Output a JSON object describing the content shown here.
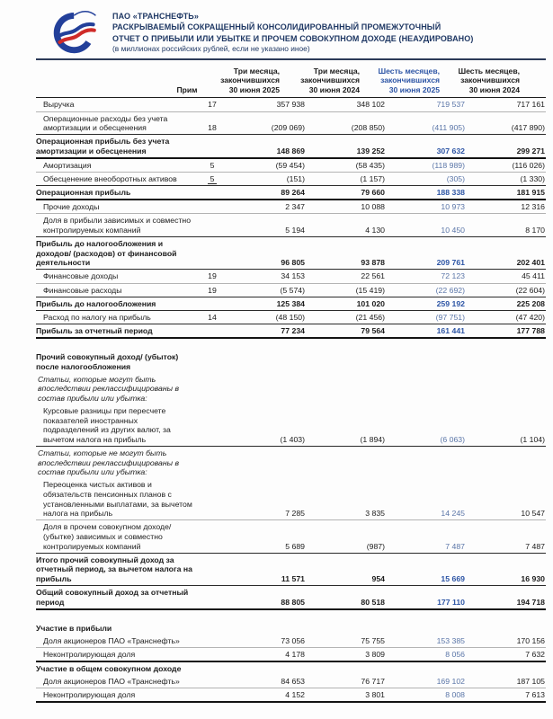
{
  "header": {
    "company": "ПАО «ТРАНСНЕФТЬ»",
    "title_line1": "РАСКРЫВАЕМЫЙ СОКРАЩЕННЫЙ КОНСОЛИДИРОВАННЫЙ ПРОМЕЖУТОЧНЫЙ",
    "title_line2": "ОТЧЕТ О ПРИБЫЛИ ИЛИ УБЫТКЕ И ПРОЧЕМ СОВОКУПНОМ ДОХОДЕ (НЕАУДИРОВАНО)",
    "units_note": "(в миллионах российских рублей, если не указано иное)",
    "logo": "transneft-emblem"
  },
  "colors": {
    "accent_blue": "#2d55a5",
    "value_blue": "#5b76a8",
    "header_navy": "#1f3864",
    "logo_blue": "#23409a",
    "logo_red": "#cf2b28"
  },
  "table": {
    "note_header": "Прим",
    "columns": [
      {
        "lines": [
          "Три месяца,",
          "закончившихся",
          "30 июня 2025"
        ],
        "highlight": false
      },
      {
        "lines": [
          "Три месяца,",
          "закончившихся",
          "30 июня 2024"
        ],
        "highlight": false
      },
      {
        "lines": [
          "Шесть месяцев,",
          "закончившихся",
          "30 июня 2025"
        ],
        "highlight": true
      },
      {
        "lines": [
          "Шесть месяцев,",
          "закончившихся",
          "30 июня 2024"
        ],
        "highlight": false
      }
    ],
    "rows": [
      {
        "label": "Выручка",
        "note": "17",
        "values": [
          "357 938",
          "348 102",
          "719 537",
          "717 161"
        ],
        "style": "data",
        "border": "thin"
      },
      {
        "label": "Операционные расходы без учета амортизации и обесценения",
        "note": "18",
        "values": [
          "(209 069)",
          "(208 850)",
          "(411 905)",
          "(417 890)"
        ],
        "style": "data",
        "border": "dark"
      },
      {
        "label": "Операционная прибыль без учета амортизации и обесценения",
        "values": [
          "148 869",
          "139 252",
          "307 632",
          "299 271"
        ],
        "style": "total",
        "border": "thick"
      },
      {
        "label": "Амортизация",
        "note": "5",
        "values": [
          "(59 454)",
          "(58 435)",
          "(118 989)",
          "(116 026)"
        ],
        "style": "data",
        "border": "thin"
      },
      {
        "label": "Обесценение внеоборотных активов",
        "note": "5",
        "note_underline": true,
        "values": [
          "(151)",
          "(1 157)",
          "(305)",
          "(1 330)"
        ],
        "style": "data",
        "border": "dark"
      },
      {
        "label": "Операционная прибыль",
        "values": [
          "89 264",
          "79 660",
          "188 338",
          "181 915"
        ],
        "style": "total",
        "border": "thick"
      },
      {
        "label": "Прочие доходы",
        "values": [
          "2 347",
          "10 088",
          "10 973",
          "12 316"
        ],
        "style": "data",
        "border": "thin"
      },
      {
        "label": "Доля в прибыли зависимых и совместно контролируемых компаний",
        "values": [
          "5 194",
          "4 130",
          "10 450",
          "8 170"
        ],
        "style": "data",
        "border": "dark"
      },
      {
        "label": "Прибыль до налогообложения и доходов/ (расходов) от финансовой деятельности",
        "values": [
          "96 805",
          "93 878",
          "209 761",
          "202 401"
        ],
        "style": "total",
        "border": "dark"
      },
      {
        "label": "Финансовые доходы",
        "note": "19",
        "values": [
          "34 153",
          "22 561",
          "72 123",
          "45 411"
        ],
        "style": "data",
        "border": "thin"
      },
      {
        "label": "Финансовые расходы",
        "note": "19",
        "values": [
          "(5 574)",
          "(15 419)",
          "(22 692)",
          "(22 604)"
        ],
        "style": "data",
        "border": "dark"
      },
      {
        "label": "Прибыль до налогообложения",
        "values": [
          "125 384",
          "101 020",
          "259 192",
          "225 208"
        ],
        "style": "total",
        "border": "dark"
      },
      {
        "label": "Расход по налогу на прибыль",
        "note": "14",
        "values": [
          "(48 150)",
          "(21 456)",
          "(97 751)",
          "(47 420)"
        ],
        "style": "data",
        "border": "dark"
      },
      {
        "label": "Прибыль за отчетный период",
        "values": [
          "77 234",
          "79 564",
          "161 441",
          "177 788"
        ],
        "style": "total",
        "border": "thick"
      },
      {
        "label": "Прочий совокупный доход/ (убыток) после налогообложения",
        "style": "section",
        "gap_before": true
      },
      {
        "label": "Статьи, которые могут быть впоследствии реклассифицированы в состав прибыли или убытка:",
        "style": "note"
      },
      {
        "label": "Курсовые разницы при пересчете показателей иностранных подразделений из других валют, за вычетом налога на прибыль",
        "values": [
          "(1 403)",
          "(1 894)",
          "(6 063)",
          "(1 104)"
        ],
        "style": "data",
        "border": "dark"
      },
      {
        "label": "Статьи, которые не могут быть впоследствии реклассифицированы в состав прибыли или убытка:",
        "style": "note"
      },
      {
        "label": "Переоценка чистых активов и обязательств пенсионных планов с установленными выплатами, за вычетом налога на прибыль",
        "values": [
          "7 285",
          "3 835",
          "14 245",
          "10 547"
        ],
        "style": "data",
        "border": "thin"
      },
      {
        "label": "Доля в прочем совокупном доходе/ (убытке) зависимых и совместно контролируемых компаний",
        "values": [
          "5 689",
          "(987)",
          "7 487",
          "7 487"
        ],
        "style": "data",
        "border": "dark"
      },
      {
        "label": "Итого прочий совокупный доход за отчетный период, за вычетом налога на прибыль",
        "values": [
          "11 571",
          "954",
          "15 669",
          "16 930"
        ],
        "style": "total",
        "border": "dark"
      },
      {
        "label": "Общий совокупный доход за отчетный период",
        "values": [
          "88 805",
          "80 518",
          "177 110",
          "194 718"
        ],
        "style": "total",
        "border": "thick"
      },
      {
        "label": "Участие в прибыли",
        "style": "section",
        "gap_before": true
      },
      {
        "label": "Доля акционеров ПАО «Транснефть»",
        "values": [
          "73 056",
          "75 755",
          "153 385",
          "170 156"
        ],
        "style": "data",
        "border": "thin"
      },
      {
        "label": "Неконтролирующая доля",
        "values": [
          "4 178",
          "3 809",
          "8 056",
          "7 632"
        ],
        "style": "data",
        "border": "thick"
      },
      {
        "label": "Участие в общем совокупном доходе",
        "style": "section"
      },
      {
        "label": "Доля акционеров ПАО «Транснефть»",
        "values": [
          "84 653",
          "76 717",
          "169 102",
          "187 105"
        ],
        "style": "data",
        "border": "thin"
      },
      {
        "label": "Неконтролирующая доля",
        "values": [
          "4 152",
          "3 801",
          "8 008",
          "7 613"
        ],
        "style": "data",
        "border": "thick"
      }
    ]
  }
}
